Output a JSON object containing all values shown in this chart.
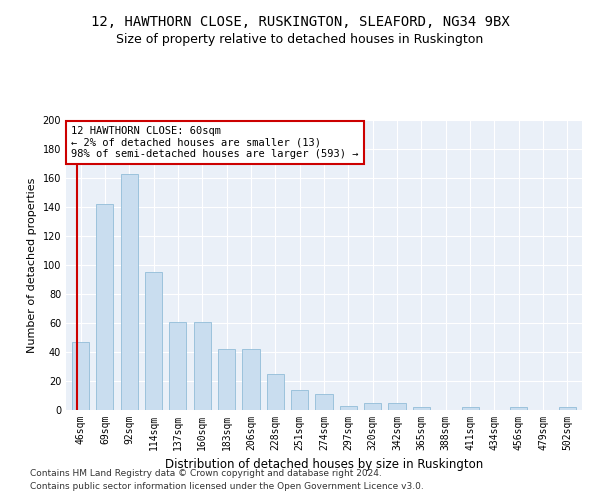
{
  "title": "12, HAWTHORN CLOSE, RUSKINGTON, SLEAFORD, NG34 9BX",
  "subtitle": "Size of property relative to detached houses in Ruskington",
  "xlabel": "Distribution of detached houses by size in Ruskington",
  "ylabel": "Number of detached properties",
  "categories": [
    "46sqm",
    "69sqm",
    "92sqm",
    "114sqm",
    "137sqm",
    "160sqm",
    "183sqm",
    "206sqm",
    "228sqm",
    "251sqm",
    "274sqm",
    "297sqm",
    "320sqm",
    "342sqm",
    "365sqm",
    "388sqm",
    "411sqm",
    "434sqm",
    "456sqm",
    "479sqm",
    "502sqm"
  ],
  "values": [
    47,
    142,
    163,
    95,
    61,
    61,
    42,
    42,
    25,
    14,
    11,
    3,
    5,
    5,
    2,
    0,
    2,
    0,
    2,
    0,
    2
  ],
  "bar_color": "#c9ddef",
  "bar_edge_color": "#92bdd8",
  "vline_color": "#cc0000",
  "annotation_text": "12 HAWTHORN CLOSE: 60sqm\n← 2% of detached houses are smaller (13)\n98% of semi-detached houses are larger (593) →",
  "annotation_box_color": "#cc0000",
  "ylim": [
    0,
    200
  ],
  "yticks": [
    0,
    20,
    40,
    60,
    80,
    100,
    120,
    140,
    160,
    180,
    200
  ],
  "footer1": "Contains HM Land Registry data © Crown copyright and database right 2024.",
  "footer2": "Contains public sector information licensed under the Open Government Licence v3.0.",
  "bg_color": "#eaf0f8",
  "grid_color": "#ffffff",
  "title_fontsize": 10,
  "subtitle_fontsize": 9,
  "tick_fontsize": 7,
  "ylabel_fontsize": 8,
  "xlabel_fontsize": 8.5,
  "annotation_fontsize": 7.5,
  "footer_fontsize": 6.5
}
